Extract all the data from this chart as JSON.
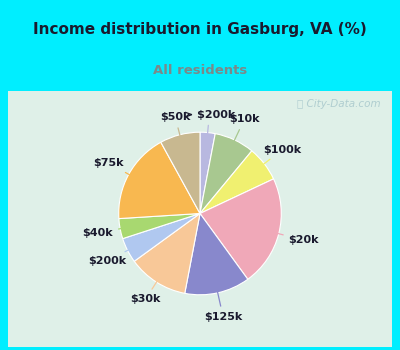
{
  "title": "Income distribution in Gasburg, VA (%)",
  "subtitle": "All residents",
  "title_color": "#1a1a2e",
  "subtitle_color": "#7a8a8a",
  "bg_cyan": "#00eeff",
  "bg_chart": "#e0f0e8",
  "labels": [
    "> $200k",
    "$10k",
    "$100k",
    "$20k",
    "$125k",
    "$30k",
    "$200k",
    "$40k",
    "$75k",
    "$50k"
  ],
  "sizes": [
    3,
    8,
    7,
    22,
    13,
    12,
    5,
    4,
    18,
    8
  ],
  "colors": [
    "#a8c898",
    "#a8c898",
    "#f0f070",
    "#f0a8b8",
    "#8888cc",
    "#f8c898",
    "#b0c8f0",
    "#a0d888",
    "#f8b850",
    "#c8b890"
  ],
  "startangle": 90,
  "label_fontsize": 8,
  "watermark": "City-Data.com"
}
